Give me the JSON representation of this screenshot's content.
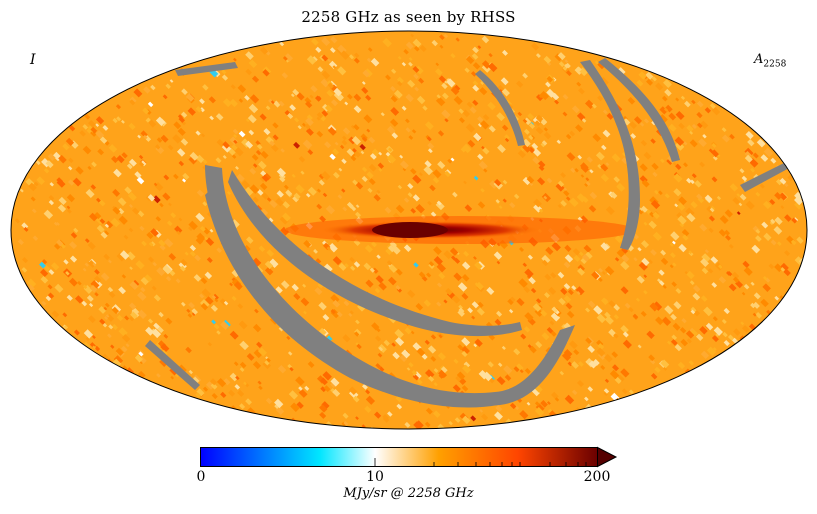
{
  "figure": {
    "title": "2258 GHz as seen by RHSS",
    "stokes_label": "I",
    "component_label": "A",
    "component_subscript": "2258"
  },
  "colorbar": {
    "min_label": "0",
    "mid_label": "10",
    "max_label": "200",
    "unit_label": "MJy/sr @ 2258 GHz",
    "colors": [
      "#0000ff",
      "#00e6ff",
      "#ffffff",
      "#ffa000",
      "#ff4500",
      "#550000"
    ],
    "extend": "max"
  },
  "map": {
    "projection": "mollweide",
    "background_color": "#ffa31a",
    "mask_color": "#808080",
    "band_color": "#7a0000"
  }
}
